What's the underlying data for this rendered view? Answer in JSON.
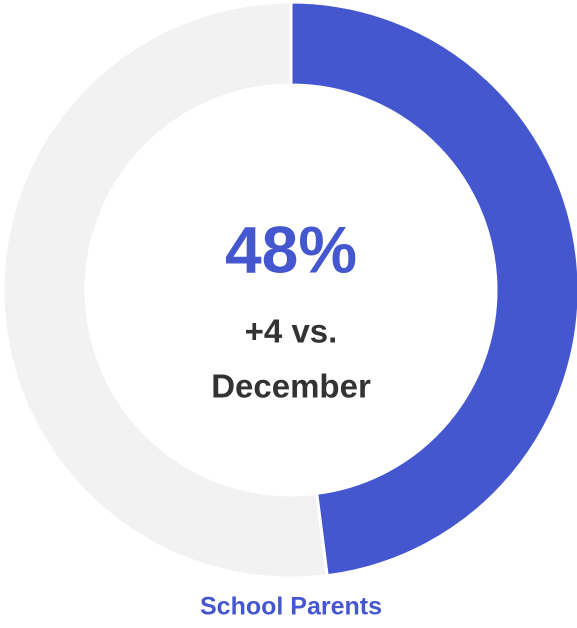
{
  "chart_data": {
    "type": "donut",
    "values": [
      48,
      52
    ],
    "value_labels": [
      "48%",
      null
    ],
    "colors": [
      "#4557cf",
      "#f2f2f2"
    ],
    "annotation": [
      "+4 vs.",
      "December"
    ],
    "label": "School Parents"
  }
}
